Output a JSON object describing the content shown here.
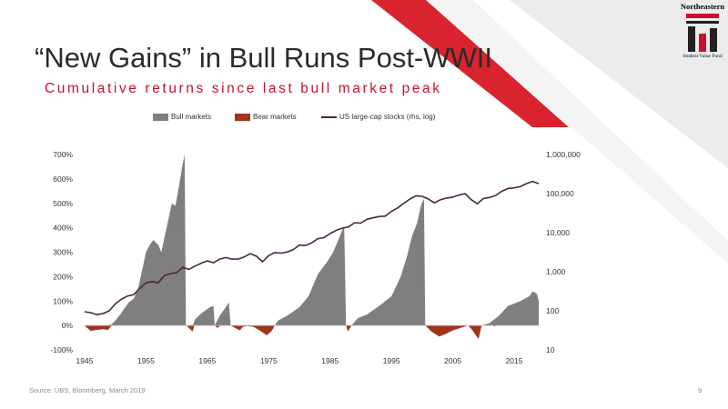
{
  "slide": {
    "title": "“New Gains” in Bull Runs Post-WWII",
    "subtitle": "Cumulative returns since last bull market peak",
    "source": "Source: UBS, Bloomberg, March 2019",
    "page_number": "9",
    "logo_name": "Northeastern",
    "logo_sub": "Student Value Fund"
  },
  "colors": {
    "accent_red": "#c8102e",
    "bull_fill": "#7f7f7f",
    "bear_fill": "#a0341f",
    "stock_line": "#4a2c22"
  },
  "chart_data": {
    "type": "area",
    "title": "“New Gains” in Bull Runs Post-WWII",
    "subtitle": "Cumulative returns since last bull market peak",
    "legend": {
      "placement": "top-center",
      "items": [
        {
          "name": "Bull markets",
          "kind": "area"
        },
        {
          "name": "Bear markets",
          "kind": "area"
        },
        {
          "name": "US large-cap stocks (rhs, log)",
          "kind": "line"
        }
      ]
    },
    "x_axis": {
      "range": [
        1945,
        2019
      ],
      "ticks": [
        "1945",
        "1955",
        "1965",
        "1975",
        "1985",
        "1995",
        "2005",
        "2015"
      ]
    },
    "y_left": {
      "range": [
        -100,
        700
      ],
      "unit": "%",
      "ticks": [
        "700%",
        "600%",
        "500%",
        "400%",
        "300%",
        "200%",
        "100%",
        "0%",
        "-100%"
      ]
    },
    "y_right": {
      "scale": "log",
      "range": [
        10,
        1000000
      ],
      "ticks": [
        "1,000,000",
        "100,000",
        "10,000",
        "1,000",
        "100",
        "10"
      ]
    },
    "grid": false,
    "series": [
      {
        "name": "Bull markets",
        "points": [
          [
            1945.0,
            0
          ],
          [
            1945.6,
            0
          ],
          [
            1946.2,
            0
          ],
          [
            1947.0,
            0
          ],
          [
            1948.0,
            0
          ],
          [
            1948.7,
            0
          ],
          [
            1949.4,
            5
          ],
          [
            1950.0,
            20
          ],
          [
            1950.8,
            45
          ],
          [
            1951.5,
            70
          ],
          [
            1952.2,
            95
          ],
          [
            1953.0,
            110
          ],
          [
            1953.7,
            150
          ],
          [
            1954.4,
            230
          ],
          [
            1955.0,
            300
          ],
          [
            1955.6,
            330
          ],
          [
            1956.2,
            350
          ],
          [
            1957.0,
            330
          ],
          [
            1957.5,
            300
          ],
          [
            1958.0,
            360
          ],
          [
            1958.7,
            440
          ],
          [
            1959.2,
            500
          ],
          [
            1959.8,
            490
          ],
          [
            1960.3,
            560
          ],
          [
            1960.9,
            650
          ],
          [
            1961.3,
            700
          ],
          [
            1961.5,
            0
          ],
          [
            1962.6,
            0
          ],
          [
            1963.0,
            25
          ],
          [
            1963.8,
            45
          ],
          [
            1964.6,
            60
          ],
          [
            1965.4,
            75
          ],
          [
            1966.0,
            80
          ],
          [
            1966.2,
            0
          ],
          [
            1967.0,
            40
          ],
          [
            1968.0,
            75
          ],
          [
            1968.5,
            95
          ],
          [
            1968.8,
            0
          ],
          [
            1976.0,
            0
          ],
          [
            1976.5,
            20
          ],
          [
            1978.0,
            40
          ],
          [
            1980.0,
            75
          ],
          [
            1981.5,
            120
          ],
          [
            1983.0,
            210
          ],
          [
            1984.5,
            260
          ],
          [
            1985.5,
            300
          ],
          [
            1986.5,
            360
          ],
          [
            1987.3,
            410
          ],
          [
            1987.6,
            0
          ],
          [
            1988.5,
            0
          ],
          [
            1989.5,
            30
          ],
          [
            1991.0,
            45
          ],
          [
            1993.0,
            80
          ],
          [
            1995.0,
            120
          ],
          [
            1996.5,
            200
          ],
          [
            1997.5,
            280
          ],
          [
            1998.4,
            370
          ],
          [
            1999.2,
            420
          ],
          [
            1999.8,
            490
          ],
          [
            2000.3,
            520
          ],
          [
            2000.5,
            0
          ],
          [
            2009.7,
            0
          ],
          [
            2011.0,
            10
          ],
          [
            2012.5,
            40
          ],
          [
            2014.0,
            80
          ],
          [
            2016.0,
            100
          ],
          [
            2017.5,
            120
          ],
          [
            2018.0,
            140
          ],
          [
            2018.7,
            130
          ],
          [
            2019.0,
            100
          ]
        ]
      },
      {
        "name": "Bear markets",
        "points": [
          [
            1945.0,
            0
          ],
          [
            1945.2,
            -5
          ],
          [
            1946.0,
            -22
          ],
          [
            1947.0,
            -18
          ],
          [
            1948.0,
            -15
          ],
          [
            1948.8,
            -18
          ],
          [
            1949.4,
            0
          ],
          [
            1961.6,
            0
          ],
          [
            1962.2,
            -15
          ],
          [
            1962.6,
            -25
          ],
          [
            1962.9,
            0
          ],
          [
            1966.2,
            0
          ],
          [
            1966.6,
            -10
          ],
          [
            1966.9,
            -5
          ],
          [
            1967.0,
            0
          ],
          [
            1968.8,
            0
          ],
          [
            1969.5,
            -10
          ],
          [
            1970.3,
            -20
          ],
          [
            1970.8,
            -5
          ],
          [
            1971.5,
            -2
          ],
          [
            1972.5,
            -5
          ],
          [
            1973.5,
            -20
          ],
          [
            1974.7,
            -40
          ],
          [
            1975.5,
            -22
          ],
          [
            1976.0,
            0
          ],
          [
            1987.6,
            0
          ],
          [
            1987.9,
            -25
          ],
          [
            1988.5,
            0
          ],
          [
            2000.5,
            0
          ],
          [
            2001.5,
            -25
          ],
          [
            2002.8,
            -45
          ],
          [
            2003.8,
            -35
          ],
          [
            2005.0,
            -20
          ],
          [
            2006.5,
            -8
          ],
          [
            2007.5,
            0
          ],
          [
            2008.2,
            -20
          ],
          [
            2008.9,
            -45
          ],
          [
            2009.2,
            -55
          ],
          [
            2009.7,
            0
          ],
          [
            2011.5,
            0
          ],
          [
            2011.8,
            -5
          ],
          [
            2012.0,
            0
          ]
        ]
      },
      {
        "name": "US large-cap stocks (rhs, log)",
        "axis": "right",
        "points": [
          [
            1945,
            95
          ],
          [
            1946,
            90
          ],
          [
            1947,
            80
          ],
          [
            1948,
            85
          ],
          [
            1949,
            100
          ],
          [
            1950,
            150
          ],
          [
            1951,
            200
          ],
          [
            1952,
            240
          ],
          [
            1953,
            260
          ],
          [
            1954,
            380
          ],
          [
            1955,
            520
          ],
          [
            1956,
            560
          ],
          [
            1957,
            520
          ],
          [
            1958,
            800
          ],
          [
            1959,
            900
          ],
          [
            1960,
            950
          ],
          [
            1961,
            1300
          ],
          [
            1962,
            1150
          ],
          [
            1963,
            1400
          ],
          [
            1964,
            1650
          ],
          [
            1965,
            1900
          ],
          [
            1966,
            1700
          ],
          [
            1967,
            2100
          ],
          [
            1968,
            2300
          ],
          [
            1969,
            2100
          ],
          [
            1970,
            2100
          ],
          [
            1971,
            2400
          ],
          [
            1972,
            2900
          ],
          [
            1973,
            2500
          ],
          [
            1974,
            1800
          ],
          [
            1975,
            2600
          ],
          [
            1976,
            3100
          ],
          [
            1977,
            3000
          ],
          [
            1978,
            3200
          ],
          [
            1979,
            3700
          ],
          [
            1980,
            4800
          ],
          [
            1981,
            4700
          ],
          [
            1982,
            5500
          ],
          [
            1983,
            7000
          ],
          [
            1984,
            7500
          ],
          [
            1985,
            9500
          ],
          [
            1986,
            11500
          ],
          [
            1987,
            13000
          ],
          [
            1988,
            14000
          ],
          [
            1989,
            18000
          ],
          [
            1990,
            17500
          ],
          [
            1991,
            22000
          ],
          [
            1992,
            24000
          ],
          [
            1993,
            26000
          ],
          [
            1994,
            26500
          ],
          [
            1995,
            35000
          ],
          [
            1996,
            43000
          ],
          [
            1997,
            56000
          ],
          [
            1998,
            72000
          ],
          [
            1999,
            88000
          ],
          [
            2000,
            85000
          ],
          [
            2001,
            73000
          ],
          [
            2002,
            58000
          ],
          [
            2003,
            70000
          ],
          [
            2004,
            77000
          ],
          [
            2005,
            81000
          ],
          [
            2006,
            92000
          ],
          [
            2007,
            100000
          ],
          [
            2008,
            70000
          ],
          [
            2009,
            55000
          ],
          [
            2010,
            75000
          ],
          [
            2011,
            80000
          ],
          [
            2012,
            90000
          ],
          [
            2013,
            115000
          ],
          [
            2014,
            135000
          ],
          [
            2015,
            140000
          ],
          [
            2016,
            150000
          ],
          [
            2017,
            180000
          ],
          [
            2018,
            205000
          ],
          [
            2019,
            180000
          ]
        ]
      }
    ]
  }
}
